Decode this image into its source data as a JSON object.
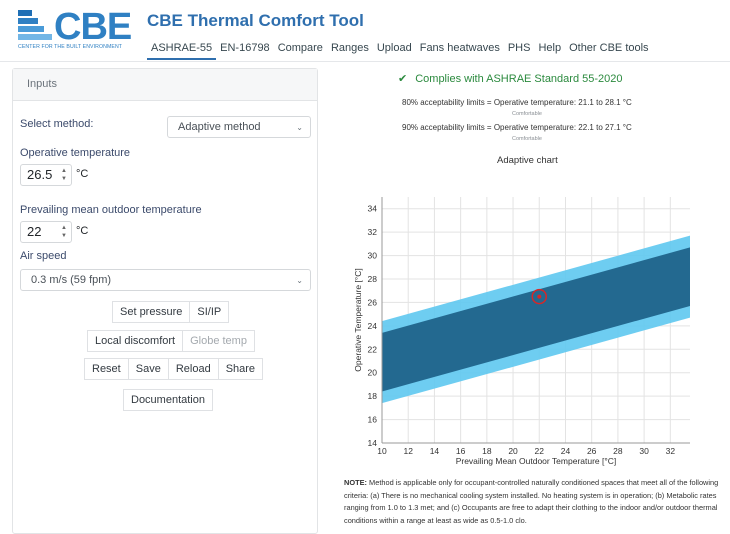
{
  "header": {
    "logo_text": "CBE",
    "logo_subtitle": "CENTER FOR THE BUILT ENVIRONMENT",
    "title": "CBE Thermal Comfort Tool",
    "nav": [
      {
        "label": "ASHRAE-55",
        "active": true
      },
      {
        "label": "EN-16798",
        "active": false
      },
      {
        "label": "Compare",
        "active": false
      },
      {
        "label": "Ranges",
        "active": false
      },
      {
        "label": "Upload",
        "active": false
      },
      {
        "label": "Fans heatwaves",
        "active": false
      },
      {
        "label": "PHS",
        "active": false
      },
      {
        "label": "Help",
        "active": false
      },
      {
        "label": "Other CBE tools",
        "active": false
      }
    ]
  },
  "inputs": {
    "panel_title": "Inputs",
    "method_label": "Select method:",
    "method_value": "Adaptive method",
    "op_temp_label": "Operative temperature",
    "op_temp_value": "26.5",
    "op_temp_unit": "°C",
    "outdoor_label": "Prevailing mean outdoor temperature",
    "outdoor_value": "22",
    "outdoor_unit": "°C",
    "air_speed_label": "Air speed",
    "air_speed_value": "0.3 m/s (59 fpm)",
    "buttons_row1": [
      "Set pressure",
      "SI/IP"
    ],
    "local_discomfort": "Local discomfort",
    "globe_temp": "Globe temp",
    "buttons_row3": [
      "Reset",
      "Save",
      "Reload",
      "Share"
    ],
    "documentation": "Documentation"
  },
  "results": {
    "complies": "Complies with ASHRAE Standard 55-2020",
    "limit80": "80% acceptability limits = Operative temperature: 21.1 to 28.1 °C",
    "limit80_status": "Comfortable",
    "limit90": "90% acceptability limits = Operative temperature: 22.1 to 27.1 °C",
    "limit90_status": "Comfortable",
    "chart_title": "Adaptive chart",
    "note_label": "NOTE:",
    "note_text": " Method is applicable only for occupant-controlled naturally conditioned spaces that meet all of the following criteria: (a) There is no mechanical cooling system installed. No heating system is in operation; (b) Metabolic rates ranging from 1.0 to 1.3 met; and (c) Occupants are free to adapt their clothing to the indoor and/or outdoor thermal conditions within a range at least as wide as 0.5-1.0 clo."
  },
  "colors": {
    "band80": "#5ec8ef",
    "band90": "#236990",
    "point": "#d62728",
    "accent": "#2f6fae"
  },
  "chart_data": {
    "type": "area",
    "xlabel": "Prevailing Mean Outdoor Temperature [°C]",
    "ylabel": "Operative Temperature [°C]",
    "xlim": [
      10,
      33.5
    ],
    "ylim": [
      14,
      35
    ],
    "xticks": [
      10,
      12,
      14,
      16,
      18,
      20,
      22,
      24,
      26,
      28,
      30,
      32
    ],
    "yticks": [
      14,
      16,
      18,
      20,
      22,
      24,
      26,
      28,
      30,
      32,
      34
    ],
    "series": [
      {
        "x": [
          10,
          33.5
        ],
        "lower": [
          17.4,
          24.7
        ],
        "upper": [
          24.4,
          31.7
        ]
      },
      {
        "x": [
          10,
          33.5
        ],
        "lower": [
          18.4,
          25.7
        ],
        "upper": [
          23.4,
          30.7
        ]
      }
    ],
    "point": {
      "x": 22,
      "y": 26.5
    },
    "grid": true
  }
}
